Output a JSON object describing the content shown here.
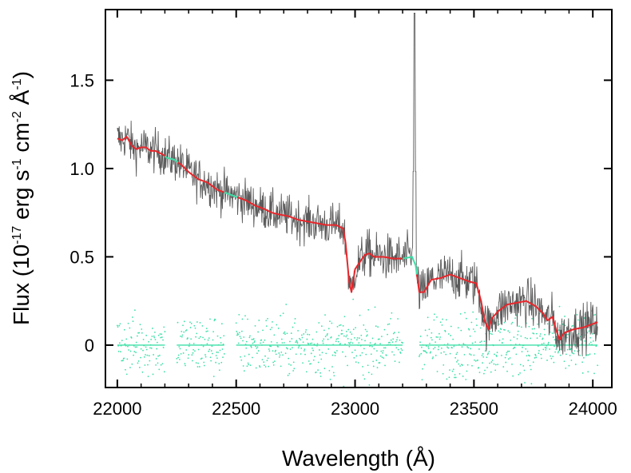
{
  "chart_data": {
    "type": "line",
    "title": "",
    "xlabel": "Wavelength (Å)",
    "ylabel": {
      "prefix": "Flux (10",
      "exp1": "-17",
      "mid1": " erg s",
      "exp2": "-1",
      "mid2": " cm",
      "exp3": "-2",
      "mid3": " Å",
      "exp4": "-1",
      "suffix": ")"
    },
    "xlim": [
      21950,
      24080
    ],
    "ylim": [
      -0.24,
      1.9
    ],
    "xticks": [
      22000,
      22500,
      23000,
      23500,
      24000
    ],
    "yticks": [
      0,
      0.5,
      1.0,
      1.5
    ],
    "ytick_labels": [
      "0",
      "0.5",
      "1.0",
      "1.5"
    ],
    "colors": {
      "observed": "#5a5a5a",
      "model": "#e8262b",
      "model_masked": "#3fe0a8",
      "residual": "#3fe0a8"
    },
    "series": [
      {
        "name": "observed spectrum",
        "style": "noisy-line",
        "noise_sigma": 0.06,
        "spike": {
          "x": 23250,
          "y": 1.88
        }
      },
      {
        "name": "model fit",
        "style": "line",
        "x": [
          22000,
          22020,
          22040,
          22060,
          22080,
          22100,
          22120,
          22140,
          22160,
          22190,
          22210,
          22240,
          22270,
          22300,
          22340,
          22380,
          22420,
          22460,
          22500,
          22540,
          22580,
          22620,
          22650,
          22680,
          22720,
          22760,
          22800,
          22840,
          22880,
          22920,
          22950,
          22960,
          22975,
          22985,
          23000,
          23020,
          23040,
          23060,
          23080,
          23120,
          23160,
          23200,
          23240,
          23255,
          23270,
          23290,
          23320,
          23360,
          23400,
          23440,
          23480,
          23510,
          23530,
          23545,
          23560,
          23575,
          23600,
          23640,
          23680,
          23720,
          23760,
          23790,
          23810,
          23830,
          23845,
          23860,
          23880,
          23920,
          23960,
          24000,
          24020
        ],
        "y": [
          1.17,
          1.16,
          1.18,
          1.13,
          1.11,
          1.12,
          1.12,
          1.1,
          1.1,
          1.08,
          1.06,
          1.05,
          1.02,
          0.98,
          0.94,
          0.92,
          0.88,
          0.86,
          0.84,
          0.82,
          0.79,
          0.77,
          0.75,
          0.74,
          0.73,
          0.71,
          0.7,
          0.69,
          0.68,
          0.68,
          0.66,
          0.58,
          0.36,
          0.3,
          0.43,
          0.47,
          0.51,
          0.52,
          0.5,
          0.5,
          0.49,
          0.49,
          0.5,
          0.45,
          0.3,
          0.3,
          0.37,
          0.38,
          0.4,
          0.38,
          0.36,
          0.35,
          0.25,
          0.14,
          0.09,
          0.15,
          0.19,
          0.23,
          0.24,
          0.25,
          0.22,
          0.18,
          0.14,
          0.16,
          0.09,
          0.03,
          0.07,
          0.09,
          0.1,
          0.12,
          0.13
        ],
        "masked_ranges": [
          [
            22200,
            22250
          ],
          [
            22450,
            22500
          ],
          [
            23200,
            23255
          ]
        ]
      },
      {
        "name": "residuals",
        "style": "scatter",
        "noise_sigma": 0.1,
        "segments": [
          [
            22000,
            22200
          ],
          [
            22250,
            22450
          ],
          [
            22500,
            23200
          ],
          [
            23270,
            24020
          ]
        ]
      }
    ]
  }
}
